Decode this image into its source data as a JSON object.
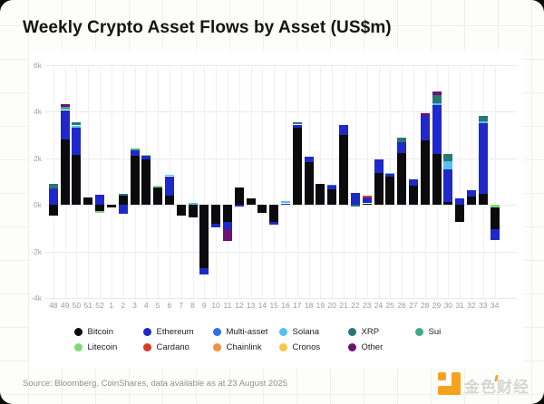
{
  "title": "Weekly Crypto Asset Flows by Asset (US$m)",
  "footer": {
    "source": "Source: Bloomberg, CoinShares, data available as at 23 August 2025"
  },
  "watermark": {
    "text": "金色财经",
    "logo_color": "#f5a31f"
  },
  "colors": {
    "card_bg": "#fdfdfb",
    "grid_paper": "#f1efec",
    "plot_grid": "#e9e9e9",
    "accent_orange": "#f5a31f"
  },
  "legend": {
    "items": [
      {
        "label": "Bitcoin",
        "color": "#0b0b0d"
      },
      {
        "label": "Ethereum",
        "color": "#1f28c9"
      },
      {
        "label": "Multi-asset",
        "color": "#2f6fe8"
      },
      {
        "label": "Solana",
        "color": "#55c1f0"
      },
      {
        "label": "XRP",
        "color": "#267976"
      },
      {
        "label": "Sui",
        "color": "#3cae83"
      },
      {
        "label": "Litecoin",
        "color": "#7cda7c"
      },
      {
        "label": "Cardano",
        "color": "#d93b2b"
      },
      {
        "label": "Chainlink",
        "color": "#ef913e"
      },
      {
        "label": "Cronos",
        "color": "#f6c74c"
      },
      {
        "label": "Other",
        "color": "#6c1175"
      }
    ]
  },
  "chart_data": {
    "type": "bar",
    "stacked": true,
    "title": "Weekly Crypto Asset Flows by Asset (US$m)",
    "ylabel": "US$m",
    "ylim": [
      -4000,
      6000
    ],
    "grid": true,
    "legend_position": "bottom",
    "ytick_values": [
      6000,
      4000,
      2000,
      0,
      -2000,
      -4000
    ],
    "ytick_labels": [
      "6k",
      "4k",
      "2k",
      "0k",
      "-2k",
      "-4k"
    ],
    "categories": [
      "48",
      "49",
      "50",
      "51",
      "52",
      "1",
      "2",
      "3",
      "4",
      "5",
      "6",
      "7",
      "8",
      "9",
      "10",
      "11",
      "12",
      "13",
      "14",
      "15",
      "16",
      "17",
      "18",
      "19",
      "20",
      "21",
      "22",
      "23",
      "24",
      "25",
      "26",
      "27",
      "28",
      "29",
      "30",
      "31",
      "32",
      "33",
      "34"
    ],
    "series_colors": {
      "Bitcoin": "#0b0b0d",
      "Ethereum": "#1f28c9",
      "Multi-asset": "#2f6fe8",
      "Solana": "#55c1f0",
      "XRP": "#267976",
      "Sui": "#3cae83",
      "Litecoin": "#7cda7c",
      "Cardano": "#d93b2b",
      "Chainlink": "#ef913e",
      "Cronos": "#f6c74c",
      "Other": "#6c1175"
    },
    "bars": [
      {
        "week": "48",
        "segments": [
          [
            "Ethereum",
            690
          ],
          [
            "XRP",
            190
          ],
          [
            "Bitcoin",
            -480
          ]
        ]
      },
      {
        "week": "49",
        "segments": [
          [
            "Bitcoin",
            2810
          ],
          [
            "Ethereum",
            1250
          ],
          [
            "Sui",
            120
          ],
          [
            "Other",
            120
          ]
        ]
      },
      {
        "week": "50",
        "segments": [
          [
            "Bitcoin",
            2150
          ],
          [
            "Ethereum",
            1150
          ],
          [
            "Solana",
            100
          ],
          [
            "XRP",
            150
          ]
        ]
      },
      {
        "week": "51",
        "segments": [
          [
            "Bitcoin",
            300
          ]
        ]
      },
      {
        "week": "52",
        "segments": [
          [
            "Ethereum",
            425
          ],
          [
            "Bitcoin",
            -265
          ],
          [
            "Litecoin",
            -105
          ]
        ]
      },
      {
        "week": "1",
        "segments": [
          [
            "Bitcoin",
            -130
          ]
        ]
      },
      {
        "week": "2",
        "segments": [
          [
            "Bitcoin",
            375
          ],
          [
            "XRP",
            80
          ],
          [
            "Ethereum",
            -370
          ]
        ]
      },
      {
        "week": "3",
        "segments": [
          [
            "Bitcoin",
            2100
          ],
          [
            "Ethereum",
            230
          ],
          [
            "Sui",
            70
          ]
        ]
      },
      {
        "week": "4",
        "segments": [
          [
            "Bitcoin",
            1960
          ],
          [
            "Ethereum",
            150
          ],
          [
            "Litecoin",
            40
          ]
        ]
      },
      {
        "week": "5",
        "segments": [
          [
            "Bitcoin",
            750
          ],
          [
            "Litecoin",
            50
          ]
        ]
      },
      {
        "week": "6",
        "segments": [
          [
            "Bitcoin",
            385
          ],
          [
            "Ethereum",
            840
          ],
          [
            "Solana",
            65
          ]
        ]
      },
      {
        "week": "7",
        "segments": [
          [
            "Bitcoin",
            -450
          ]
        ]
      },
      {
        "week": "8",
        "segments": [
          [
            "Solana",
            80
          ],
          [
            "Bitcoin",
            -550
          ]
        ]
      },
      {
        "week": "9",
        "segments": [
          [
            "Bitcoin",
            -2700
          ],
          [
            "Ethereum",
            -300
          ]
        ]
      },
      {
        "week": "10",
        "segments": [
          [
            "Bitcoin",
            -800
          ],
          [
            "Ethereum",
            -190
          ]
        ]
      },
      {
        "week": "11",
        "segments": [
          [
            "Bitcoin",
            -730
          ],
          [
            "Ethereum",
            -320
          ],
          [
            "Other",
            -515
          ]
        ]
      },
      {
        "week": "12",
        "segments": [
          [
            "Bitcoin",
            740
          ],
          [
            "Ethereum",
            -90
          ]
        ]
      },
      {
        "week": "13",
        "segments": [
          [
            "Bitcoin",
            270
          ]
        ]
      },
      {
        "week": "14",
        "segments": [
          [
            "Bitcoin",
            -350
          ]
        ]
      },
      {
        "week": "15",
        "segments": [
          [
            "Bitcoin",
            -750
          ],
          [
            "Ethereum",
            -90
          ]
        ]
      },
      {
        "week": "16",
        "segments": [
          [
            "Ethereum",
            60
          ],
          [
            "Solana",
            100
          ]
        ]
      },
      {
        "week": "17",
        "segments": [
          [
            "Bitcoin",
            3310
          ],
          [
            "Ethereum",
            130
          ],
          [
            "XRP",
            90
          ]
        ]
      },
      {
        "week": "18",
        "segments": [
          [
            "Bitcoin",
            1835
          ],
          [
            "Ethereum",
            215
          ]
        ]
      },
      {
        "week": "19",
        "segments": [
          [
            "Bitcoin",
            900
          ]
        ]
      },
      {
        "week": "20",
        "segments": [
          [
            "Bitcoin",
            655
          ],
          [
            "Ethereum",
            150
          ],
          [
            "Multi-asset",
            35
          ]
        ]
      },
      {
        "week": "21",
        "segments": [
          [
            "Bitcoin",
            2990
          ],
          [
            "Ethereum",
            440
          ]
        ]
      },
      {
        "week": "22",
        "segments": [
          [
            "Ethereum",
            490
          ],
          [
            "XRP",
            -80
          ]
        ]
      },
      {
        "week": "23",
        "segments": [
          [
            "Bitcoin",
            60
          ],
          [
            "Ethereum",
            250
          ],
          [
            "Cardano",
            90
          ]
        ]
      },
      {
        "week": "24",
        "segments": [
          [
            "Bitcoin",
            1345
          ],
          [
            "Ethereum",
            615
          ]
        ]
      },
      {
        "week": "25",
        "segments": [
          [
            "Bitcoin",
            1220
          ],
          [
            "Ethereum",
            90
          ],
          [
            "Solana",
            40
          ]
        ]
      },
      {
        "week": "26",
        "segments": [
          [
            "Bitcoin",
            2220
          ],
          [
            "Ethereum",
            445
          ],
          [
            "XRP",
            220
          ]
        ]
      },
      {
        "week": "27",
        "segments": [
          [
            "Bitcoin",
            815
          ],
          [
            "Ethereum",
            285
          ]
        ]
      },
      {
        "week": "28",
        "segments": [
          [
            "Bitcoin",
            2760
          ],
          [
            "Ethereum",
            1035
          ],
          [
            "Other",
            135
          ]
        ]
      },
      {
        "week": "29",
        "segments": [
          [
            "Bitcoin",
            2175
          ],
          [
            "Ethereum",
            2095
          ],
          [
            "Solana",
            90
          ],
          [
            "XRP",
            350
          ],
          [
            "Other",
            130
          ]
        ]
      },
      {
        "week": "30",
        "segments": [
          [
            "Bitcoin",
            100
          ],
          [
            "Ethereum",
            1430
          ],
          [
            "Solana",
            325
          ],
          [
            "XRP",
            320
          ]
        ]
      },
      {
        "week": "31",
        "segments": [
          [
            "Ethereum",
            260
          ],
          [
            "Bitcoin",
            -730
          ]
        ]
      },
      {
        "week": "32",
        "segments": [
          [
            "Bitcoin",
            360
          ],
          [
            "Ethereum",
            260
          ]
        ]
      },
      {
        "week": "33",
        "segments": [
          [
            "Bitcoin",
            450
          ],
          [
            "Ethereum",
            3030
          ],
          [
            "Solana",
            80
          ],
          [
            "XRP",
            260
          ]
        ]
      },
      {
        "week": "34",
        "segments": [
          [
            "Litecoin",
            -100
          ],
          [
            "Bitcoin",
            -960
          ],
          [
            "Ethereum",
            -455
          ]
        ]
      }
    ]
  }
}
